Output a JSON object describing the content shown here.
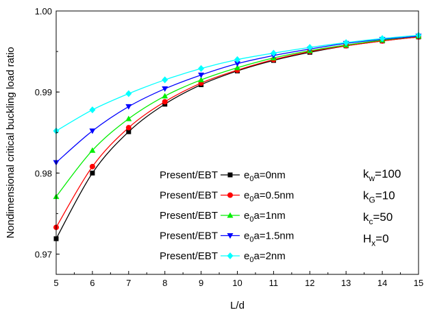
{
  "chart_data": {
    "type": "line",
    "title": "",
    "xlabel": "L/d",
    "ylabel": "Nondimensional critical buckling load ratio",
    "xlim": [
      5,
      15
    ],
    "ylim": [
      0.9675,
      1.0
    ],
    "x_ticks": [
      5,
      6,
      7,
      8,
      9,
      10,
      11,
      12,
      13,
      14,
      15
    ],
    "y_ticks": [
      0.97,
      0.98,
      0.99,
      1.0
    ],
    "x_tick_labels": [
      "5",
      "6",
      "7",
      "8",
      "9",
      "10",
      "11",
      "12",
      "13",
      "14",
      "15"
    ],
    "y_tick_labels": [
      "0.97",
      "0.98",
      "0.99",
      "1.00"
    ],
    "grid": false,
    "legend_position": "lower-center",
    "x": [
      5,
      6,
      7,
      8,
      9,
      10,
      11,
      12,
      13,
      14,
      15
    ],
    "series": [
      {
        "name": "e0a=0nm",
        "prefix": "Present/EBT",
        "name_main": "e",
        "name_sub": "0",
        "name_rest": "a=0nm",
        "color": "#000000",
        "marker": "square",
        "values": [
          0.9719,
          0.98,
          0.9851,
          0.9885,
          0.9909,
          0.9926,
          0.9939,
          0.9949,
          0.9957,
          0.9963,
          0.9968
        ]
      },
      {
        "name": "e0a=0.5nm",
        "prefix": "Present/EBT",
        "name_main": "e",
        "name_sub": "0",
        "name_rest": "a=0.5nm",
        "color": "#ff0000",
        "marker": "circle",
        "values": [
          0.9733,
          0.9808,
          0.9856,
          0.9888,
          0.9911,
          0.9927,
          0.994,
          0.995,
          0.9957,
          0.9963,
          0.9968
        ]
      },
      {
        "name": "e0a=1nm",
        "prefix": "Present/EBT",
        "name_main": "e",
        "name_sub": "0",
        "name_rest": "a=1nm",
        "color": "#00ee00",
        "marker": "triangle-up",
        "values": [
          0.9771,
          0.9828,
          0.9867,
          0.9895,
          0.9915,
          0.993,
          0.9942,
          0.9951,
          0.9958,
          0.9964,
          0.9969
        ]
      },
      {
        "name": "e0a=1.5nm",
        "prefix": "Present/EBT",
        "name_main": "e",
        "name_sub": "0",
        "name_rest": "a=1.5nm",
        "color": "#0000ff",
        "marker": "triangle-down",
        "values": [
          0.9813,
          0.9852,
          0.9882,
          0.9904,
          0.9921,
          0.9935,
          0.9945,
          0.9953,
          0.996,
          0.9965,
          0.9969
        ]
      },
      {
        "name": "e0a=2nm",
        "prefix": "Present/EBT",
        "name_main": "e",
        "name_sub": "0",
        "name_rest": "a=2nm",
        "color": "#00ffff",
        "marker": "diamond",
        "values": [
          0.9852,
          0.9878,
          0.9898,
          0.9915,
          0.9929,
          0.994,
          0.9948,
          0.9955,
          0.9961,
          0.9966,
          0.997
        ]
      }
    ],
    "parameters": [
      {
        "main": "k",
        "sub": "w",
        "value": "=100"
      },
      {
        "main": "k",
        "sub": "G",
        "value": "=10"
      },
      {
        "main": "k",
        "sub": "c",
        "value": "=50"
      },
      {
        "main": "H",
        "sub": "x",
        "value": "=0"
      }
    ]
  }
}
